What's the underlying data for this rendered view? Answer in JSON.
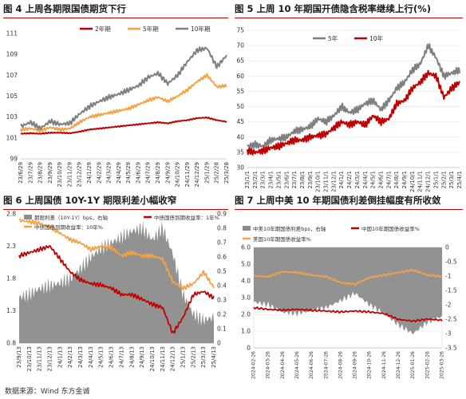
{
  "source": "数据来源：Wind 东方金诚",
  "colors": {
    "red": "#c00000",
    "orange": "#f4a245",
    "gray": "#7f7f7f",
    "area": "#8c8c8c",
    "rule": "#c00000"
  },
  "chart_data": [
    {
      "id": "fig4",
      "type": "line",
      "title": "图 4  上周各期限国债期货下行",
      "legend_placement": "top-center",
      "ylim": [
        99,
        111
      ],
      "yticks": [
        "99",
        "101",
        "103",
        "105",
        "107",
        "109",
        "111"
      ],
      "xticks": [
        "23/6/29",
        "23/7/29",
        "23/8/29",
        "23/9/29",
        "23/10/29",
        "23/11/29",
        "23/12/29",
        "24/1/29",
        "24/2/29",
        "24/3/29",
        "24/4/29",
        "24/5/29",
        "24/6/29",
        "24/7/29",
        "24/8/29",
        "24/9/29",
        "24/10/29",
        "24/11/29",
        "24/12/29",
        "25/1/29",
        "25/2/28",
        "25/3/28"
      ],
      "series": [
        {
          "name": "2年期",
          "color": "#c00000",
          "values": [
            101.4,
            101.45,
            101.4,
            101.5,
            101.5,
            101.45,
            101.6,
            101.8,
            101.9,
            102.0,
            102.1,
            102.2,
            102.3,
            102.4,
            102.5,
            102.4,
            102.6,
            102.7,
            102.9,
            102.95,
            102.7,
            102.55
          ]
        },
        {
          "name": "5年期",
          "color": "#f4a245",
          "values": [
            101.8,
            101.9,
            101.7,
            102.0,
            101.8,
            101.9,
            102.5,
            103.0,
            103.2,
            103.4,
            103.6,
            103.8,
            104.2,
            104.6,
            104.9,
            104.5,
            105.0,
            105.6,
            106.4,
            107.0,
            105.9,
            106.0
          ]
        },
        {
          "name": "10年期",
          "color": "#7f7f7f",
          "values": [
            102.1,
            102.5,
            101.9,
            102.6,
            102.3,
            102.4,
            103.3,
            104.0,
            104.5,
            104.9,
            105.2,
            105.6,
            106.0,
            106.8,
            107.2,
            106.2,
            107.0,
            108.3,
            109.4,
            109.6,
            107.8,
            108.9
          ]
        }
      ]
    },
    {
      "id": "fig5",
      "type": "line",
      "title": "图 5  上周 10 年期国开债隐含税率继续上行(%)",
      "legend_placement": "top-left",
      "ylim": [
        30,
        75
      ],
      "yticks": [
        "30",
        "35",
        "40",
        "45",
        "50",
        "55",
        "60",
        "65",
        "70",
        "75"
      ],
      "xticks": [
        "23/1/1",
        "23/2/1",
        "23/3/1",
        "23/4/1",
        "23/5/1",
        "23/6/1",
        "23/7/1",
        "23/8/1",
        "23/9/1",
        "23/10/1",
        "23/11/1",
        "23/12/1",
        "24/1/1",
        "24/2/1",
        "24/3/1",
        "24/4/1",
        "24/5/1",
        "24/6/1",
        "24/7/1",
        "24/8/1",
        "24/9/1",
        "24/10/1",
        "24/11/1",
        "24/12/1",
        "25/1/1",
        "25/2/1",
        "25/3/1",
        "25/4/1"
      ],
      "series": [
        {
          "name": "5年",
          "color": "#7f7f7f",
          "values": [
            37,
            37.5,
            37,
            39,
            39.5,
            40,
            42,
            42.5,
            43.5,
            46,
            45,
            47,
            50,
            48,
            49,
            51,
            52,
            49,
            52,
            56,
            58,
            62,
            64,
            70,
            66,
            60,
            61,
            62
          ]
        },
        {
          "name": "10年",
          "color": "#c00000",
          "values": [
            35.5,
            35,
            35.5,
            36.5,
            37,
            38,
            39,
            39,
            40,
            40.5,
            41,
            43,
            45,
            44,
            45,
            44,
            47,
            45,
            46,
            51,
            52,
            56,
            58,
            61,
            60,
            53,
            56,
            58
          ]
        }
      ]
    },
    {
      "id": "fig6",
      "type": "area",
      "title": "图 6  上周国债 10Y-1Y 期限利差小幅收窄",
      "legend_placement": "top",
      "ylim_left": [
        0.8,
        2.8
      ],
      "yticks_left": [
        "0.8",
        "1.3",
        "1.8",
        "2.3",
        "2.8"
      ],
      "ylim_right": [
        0,
        0.9
      ],
      "yticks_right": [
        "0",
        "0.1",
        "0.2",
        "0.3",
        "0.4",
        "0.5",
        "0.6",
        "0.7",
        "0.8",
        "0.9"
      ],
      "xticks": [
        "23/9/13",
        "23/10/13",
        "23/11/13",
        "23/12/13",
        "24/1/13",
        "24/2/13",
        "24/3/13",
        "24/4/13",
        "24/5/13",
        "24/6/13",
        "24/7/13",
        "24/8/13",
        "24/9/13",
        "24/10/13",
        "24/11/13",
        "24/12/13",
        "25/1/13",
        "25/2/13",
        "25/3/13",
        "25/4/13"
      ],
      "series": [
        {
          "name": "期限利差（10Y-1Y）bps，右轴",
          "kind": "area",
          "axis": "right",
          "color": "#8c8c8c",
          "values": [
            0.32,
            0.34,
            0.38,
            0.4,
            0.42,
            0.45,
            0.52,
            0.6,
            0.66,
            0.7,
            0.74,
            0.78,
            0.8,
            0.72,
            0.8,
            0.62,
            0.34,
            0.2,
            0.16,
            0.18
          ]
        },
        {
          "name": "中债国债到期收益率：1年%",
          "kind": "line",
          "axis": "left",
          "color": "#c00000",
          "values": [
            2.15,
            2.2,
            2.25,
            2.3,
            2.1,
            1.9,
            1.78,
            1.72,
            1.7,
            1.65,
            1.55,
            1.55,
            1.48,
            1.4,
            1.35,
            0.95,
            1.2,
            1.55,
            1.6,
            1.5
          ]
        },
        {
          "name": "中债国债到期收益率：10年%",
          "kind": "line",
          "axis": "left",
          "color": "#f4a245",
          "values": [
            2.7,
            2.68,
            2.65,
            2.6,
            2.5,
            2.4,
            2.35,
            2.25,
            2.3,
            2.28,
            2.15,
            2.2,
            2.15,
            2.15,
            2.1,
            1.75,
            1.65,
            1.72,
            1.9,
            1.66
          ]
        }
      ]
    },
    {
      "id": "fig7",
      "type": "area",
      "title": "图 7  上周中美 10 年期国债利差倒挂幅度有所收敛",
      "legend_placement": "top",
      "ylim_left": [
        0,
        6
      ],
      "yticks_left": [
        "0",
        "1.0",
        "2.0",
        "3.0",
        "4.0",
        "5.0",
        "6.0"
      ],
      "ylim_right": [
        -3.5,
        0
      ],
      "yticks_right": [
        "-3.5",
        "-3",
        "-2.5",
        "-2",
        "-1.5",
        "-1",
        "-0.5",
        "0"
      ],
      "xticks": [
        "2024-02-26",
        "2024-03-26",
        "2024-04-26",
        "2024-05-26",
        "2024-06-26",
        "2024-07-26",
        "2024-08-26",
        "2024-09-26",
        "2024-10-26",
        "2024-11-26",
        "2024-12-26",
        "2025-01-26",
        "2025-02-26",
        "2025-03-26"
      ],
      "series": [
        {
          "name": "中美10年期国债利差bps，右轴",
          "kind": "area",
          "axis": "right",
          "color": "#8c8c8c",
          "values": [
            -1.9,
            -2.0,
            -2.25,
            -2.3,
            -2.2,
            -2.1,
            -1.85,
            -1.6,
            -2.0,
            -2.3,
            -2.7,
            -3.0,
            -2.6,
            -2.4
          ]
        },
        {
          "name": "中国10年期国债收益率%",
          "kind": "line",
          "axis": "left",
          "color": "#c00000",
          "values": [
            2.4,
            2.3,
            2.25,
            2.3,
            2.25,
            2.2,
            2.15,
            2.2,
            2.15,
            2.05,
            1.7,
            1.6,
            1.72,
            1.65
          ]
        },
        {
          "name": "美国10年期国债收益率%",
          "kind": "line",
          "axis": "left",
          "color": "#f4a245",
          "values": [
            4.3,
            4.25,
            4.55,
            4.5,
            4.35,
            4.25,
            3.9,
            3.8,
            4.2,
            4.35,
            4.5,
            4.65,
            4.35,
            4.25
          ]
        }
      ]
    }
  ]
}
